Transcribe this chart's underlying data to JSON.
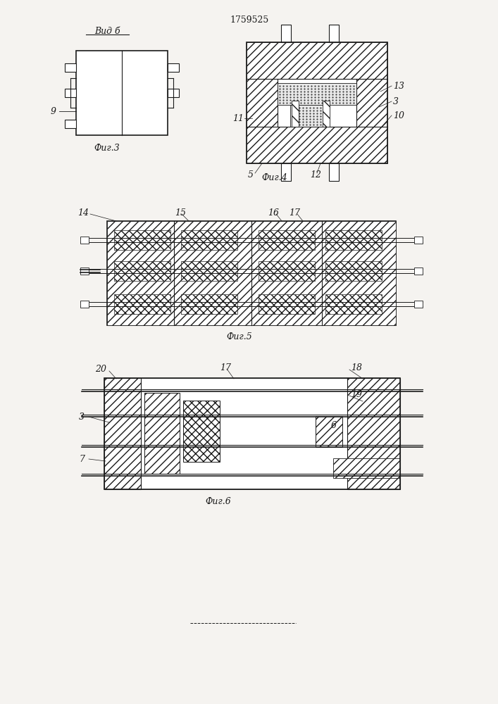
{
  "patent_number": "1759525",
  "bg": "#f5f3f0",
  "lc": "#1a1a1a",
  "fig3_label": "Фиг.3",
  "fig4_label": "Фиг.4",
  "fig5_label": "Фиг.5",
  "fig6_label": "Фиг.6",
  "vid_b": "Вид б"
}
